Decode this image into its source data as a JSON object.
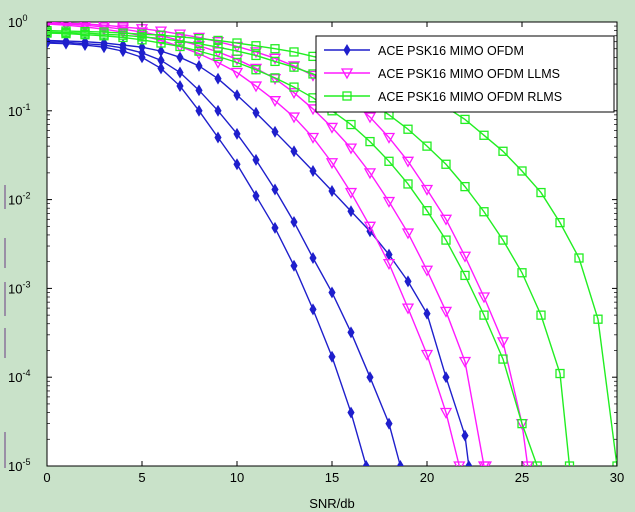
{
  "chart_data": {
    "type": "line",
    "xlabel": "SNR/db",
    "ylabel": "",
    "title": "",
    "xlim": [
      0,
      30
    ],
    "ylim": [
      1e-05,
      1
    ],
    "yscale": "log",
    "grid": false,
    "legend_position": "top-right",
    "x_ticks": [
      "0",
      "5",
      "10",
      "15",
      "20",
      "25",
      "30"
    ],
    "y_ticks": [
      {
        "base": "10",
        "exp": "0",
        "value": 1
      },
      {
        "base": "10",
        "exp": "-1",
        "value": 0.1
      },
      {
        "base": "10",
        "exp": "-2",
        "value": 0.01
      },
      {
        "base": "10",
        "exp": "-3",
        "value": 0.001
      },
      {
        "base": "10",
        "exp": "-4",
        "value": 0.0001
      },
      {
        "base": "10",
        "exp": "-5",
        "value": 1e-05
      }
    ],
    "legend": [
      {
        "label": "ACE PSK16 MIMO OFDM",
        "color": "#1f1fcc",
        "marker": "diamond"
      },
      {
        "label": "ACE PSK16 MIMO OFDM LLMS",
        "color": "#ff1aff",
        "marker": "triangle-down"
      },
      {
        "label": "ACE PSK16 MIMO OFDM RLMS",
        "color": "#22ee22",
        "marker": "square"
      }
    ],
    "series": [
      {
        "group": 0,
        "color": "#1f1fcc",
        "marker": "diamond",
        "x": [
          0,
          1,
          2,
          3,
          4,
          5,
          6,
          7,
          8,
          9,
          10,
          11,
          12,
          13,
          14,
          15,
          16,
          16.8
        ],
        "y": [
          0.58,
          0.57,
          0.55,
          0.52,
          0.47,
          0.4,
          0.3,
          0.19,
          0.1,
          0.05,
          0.025,
          0.011,
          0.0048,
          0.0018,
          0.00058,
          0.00017,
          4e-05,
          1e-05
        ]
      },
      {
        "group": 0,
        "color": "#1f1fcc",
        "marker": "diamond",
        "x": [
          0,
          1,
          2,
          3,
          4,
          5,
          6,
          7,
          8,
          9,
          10,
          11,
          12,
          13,
          14,
          15,
          16,
          17,
          18,
          18.6
        ],
        "y": [
          0.6,
          0.59,
          0.57,
          0.55,
          0.51,
          0.45,
          0.37,
          0.27,
          0.17,
          0.1,
          0.055,
          0.028,
          0.013,
          0.0056,
          0.0022,
          0.0009,
          0.00032,
          0.0001,
          3e-05,
          1e-05
        ]
      },
      {
        "group": 0,
        "color": "#1f1fcc",
        "marker": "diamond",
        "x": [
          0,
          1,
          2,
          3,
          4,
          5,
          6,
          7,
          8,
          9,
          10,
          11,
          12,
          13,
          14,
          15,
          16,
          17,
          18,
          19,
          20,
          21,
          22,
          22.2
        ],
        "y": [
          0.62,
          0.61,
          0.6,
          0.58,
          0.55,
          0.52,
          0.47,
          0.4,
          0.32,
          0.23,
          0.15,
          0.095,
          0.058,
          0.035,
          0.021,
          0.0125,
          0.0074,
          0.0044,
          0.0024,
          0.0012,
          0.00052,
          0.0001,
          2.2e-05,
          1e-05
        ]
      },
      {
        "group": 1,
        "color": "#ff1aff",
        "marker": "triangle-down",
        "x": [
          0,
          1,
          2,
          3,
          4,
          5,
          6,
          7,
          8,
          9,
          10,
          11,
          12,
          13,
          14,
          15,
          16,
          17,
          18,
          19,
          20,
          21,
          21.7
        ],
        "y": [
          0.95,
          0.92,
          0.88,
          0.83,
          0.77,
          0.7,
          0.62,
          0.53,
          0.44,
          0.35,
          0.27,
          0.19,
          0.13,
          0.085,
          0.05,
          0.026,
          0.012,
          0.005,
          0.0019,
          0.0006,
          0.00018,
          4e-05,
          1e-05
        ]
      },
      {
        "group": 1,
        "color": "#ff1aff",
        "marker": "triangle-down",
        "x": [
          0,
          1,
          2,
          3,
          4,
          5,
          6,
          7,
          8,
          9,
          10,
          11,
          12,
          13,
          14,
          15,
          16,
          17,
          18,
          19,
          20,
          21,
          22,
          23,
          23.1
        ],
        "y": [
          0.97,
          0.95,
          0.92,
          0.88,
          0.83,
          0.77,
          0.7,
          0.62,
          0.54,
          0.46,
          0.38,
          0.3,
          0.23,
          0.16,
          0.105,
          0.065,
          0.038,
          0.02,
          0.0095,
          0.0042,
          0.0016,
          0.00055,
          0.00015,
          1e-05,
          1e-05
        ]
      },
      {
        "group": 1,
        "color": "#ff1aff",
        "marker": "triangle-down",
        "x": [
          0,
          1,
          2,
          3,
          4,
          5,
          6,
          7,
          8,
          9,
          10,
          11,
          12,
          13,
          14,
          15,
          16,
          17,
          18,
          19,
          20,
          21,
          22,
          23,
          24,
          25,
          25.3
        ],
        "y": [
          0.99,
          0.97,
          0.95,
          0.92,
          0.88,
          0.84,
          0.79,
          0.73,
          0.67,
          0.6,
          0.53,
          0.46,
          0.39,
          0.32,
          0.25,
          0.19,
          0.13,
          0.085,
          0.05,
          0.027,
          0.013,
          0.006,
          0.0023,
          0.0008,
          0.00025,
          3e-05,
          1e-05
        ]
      },
      {
        "group": 2,
        "color": "#22ee22",
        "marker": "square",
        "x": [
          0,
          1,
          2,
          3,
          4,
          5,
          6,
          7,
          8,
          9,
          10,
          11,
          12,
          13,
          14,
          15,
          16,
          17,
          18,
          19,
          20,
          21,
          22,
          23,
          24,
          25,
          25.8
        ],
        "y": [
          0.75,
          0.74,
          0.72,
          0.7,
          0.67,
          0.63,
          0.58,
          0.53,
          0.47,
          0.41,
          0.35,
          0.29,
          0.235,
          0.185,
          0.14,
          0.1,
          0.07,
          0.045,
          0.027,
          0.015,
          0.0075,
          0.0035,
          0.0014,
          0.0005,
          0.00016,
          3e-05,
          1e-05
        ]
      },
      {
        "group": 2,
        "color": "#22ee22",
        "marker": "square",
        "x": [
          0,
          1,
          2,
          3,
          4,
          5,
          6,
          7,
          8,
          9,
          10,
          11,
          12,
          13,
          14,
          15,
          16,
          17,
          18,
          19,
          20,
          21,
          22,
          23,
          24,
          25,
          26,
          27,
          27.5
        ],
        "y": [
          0.77,
          0.76,
          0.75,
          0.73,
          0.71,
          0.68,
          0.65,
          0.61,
          0.57,
          0.52,
          0.47,
          0.42,
          0.36,
          0.31,
          0.26,
          0.21,
          0.165,
          0.125,
          0.09,
          0.062,
          0.04,
          0.025,
          0.014,
          0.0073,
          0.0035,
          0.0015,
          0.0005,
          0.00011,
          1e-05
        ]
      },
      {
        "group": 2,
        "color": "#22ee22",
        "marker": "square",
        "x": [
          0,
          1,
          2,
          3,
          4,
          5,
          6,
          7,
          8,
          9,
          10,
          11,
          12,
          13,
          14,
          15,
          16,
          17,
          18,
          19,
          20,
          21,
          22,
          23,
          24,
          25,
          26,
          27,
          28,
          29,
          30
        ],
        "y": [
          0.8,
          0.79,
          0.78,
          0.77,
          0.75,
          0.73,
          0.71,
          0.68,
          0.65,
          0.62,
          0.58,
          0.54,
          0.5,
          0.46,
          0.41,
          0.37,
          0.32,
          0.27,
          0.23,
          0.19,
          0.15,
          0.11,
          0.08,
          0.053,
          0.035,
          0.021,
          0.012,
          0.0055,
          0.0022,
          0.00045,
          1e-05
        ]
      }
    ]
  }
}
